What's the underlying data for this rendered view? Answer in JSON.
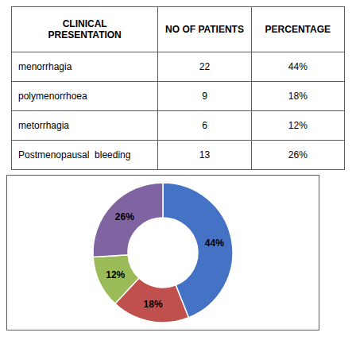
{
  "chart_data": [
    {
      "type": "table",
      "columns": [
        "CLINICAL\nPRESENTATION",
        "NO OF PATIENTS",
        "PERCENTAGE"
      ],
      "rows": [
        [
          "menorrhagia",
          "22",
          "44%"
        ],
        [
          "polymenorrhoea",
          "9",
          "18%"
        ],
        [
          "metorrhagia",
          "6",
          "12%"
        ],
        [
          "Postmenopausal  bleeding",
          "13",
          "26%"
        ]
      ]
    },
    {
      "type": "pie",
      "values": [
        44,
        18,
        12,
        26
      ],
      "value_labels": [
        "44%",
        "18%",
        "12%",
        "26%"
      ],
      "colors": [
        "#4472C4",
        "#C0504D",
        "#9BBB59",
        "#8064A2"
      ],
      "data_labels": true
    }
  ]
}
